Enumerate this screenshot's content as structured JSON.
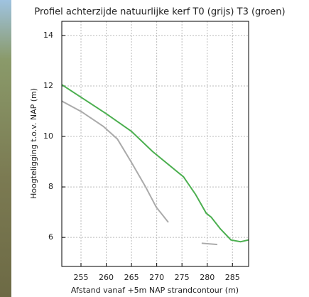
{
  "chart_data": {
    "type": "line",
    "title": "Profiel achterzijde natuurlijke kerf T0 (grijs) T3 (groen)",
    "x_label": "Afstand vanaf +5m NAP strandcontour (m)",
    "y_label": "Hoogteligging t.o.v. NAP (m)",
    "xlim": [
      251.2,
      288.2
    ],
    "ylim": [
      4.85,
      14.56
    ],
    "xticks": [
      255,
      260,
      265,
      270,
      275,
      280,
      285
    ],
    "yticks": [
      6,
      8,
      10,
      12,
      14
    ],
    "grid": true,
    "series": [
      {
        "name": "T0 (grijs)",
        "color": "#aaaaaa",
        "x": [
          251.2,
          255.1,
          259.4,
          262.2,
          265,
          267.8,
          269.9,
          272.3,
          null,
          278.9,
          282
        ],
        "values": [
          11.4,
          10.98,
          10.4,
          9.9,
          8.97,
          8.0,
          7.2,
          6.6,
          null,
          5.77,
          5.72
        ]
      },
      {
        "name": "T3 (groen)",
        "color": "#4caf50",
        "x": [
          251.2,
          255.1,
          260,
          265,
          269.2,
          275.3,
          277.7,
          279.8,
          280.8,
          282.6,
          284.7,
          286.6,
          288.2
        ],
        "values": [
          12.05,
          11.54,
          10.9,
          10.2,
          9.4,
          8.4,
          7.7,
          6.96,
          6.8,
          6.34,
          5.9,
          5.83,
          5.9
        ]
      }
    ]
  }
}
